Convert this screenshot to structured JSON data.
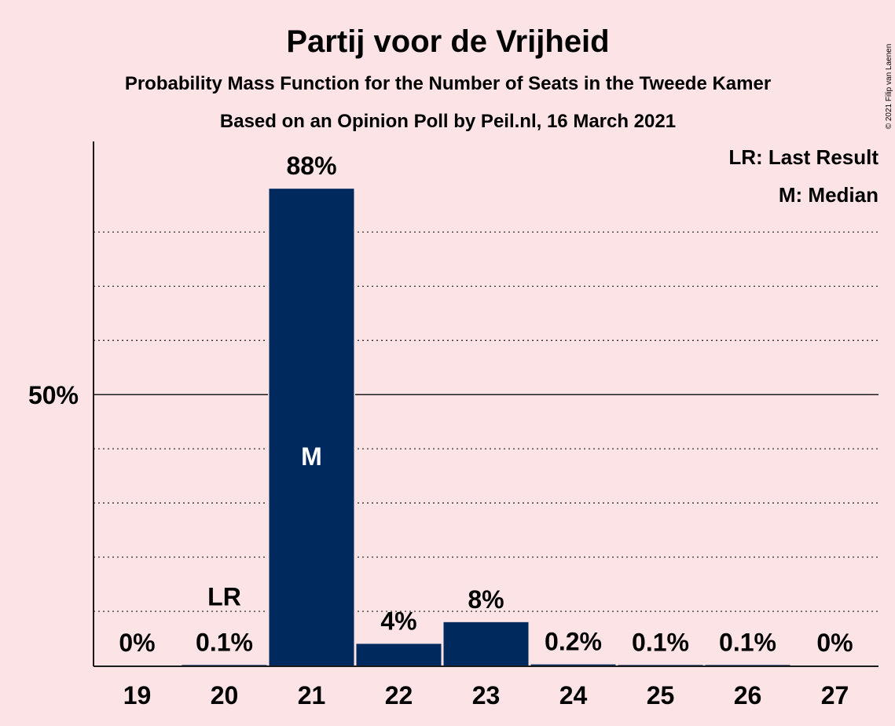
{
  "chart_data": {
    "type": "bar",
    "title": "Partij voor de Vrijheid",
    "subtitle": "Probability Mass Function for the Number of Seats in the Tweede Kamer",
    "subtitle2": "Based on an Opinion Poll by Peil.nl, 16 March 2021",
    "copyright": "© 2021 Filip van Laenen",
    "categories": [
      "19",
      "20",
      "21",
      "22",
      "23",
      "24",
      "25",
      "26",
      "27"
    ],
    "values": [
      0,
      0.1,
      88,
      4,
      8,
      0.2,
      0.1,
      0.1,
      0
    ],
    "value_labels": [
      "0%",
      "0.1%",
      "88%",
      "4%",
      "8%",
      "0.2%",
      "0.1%",
      "0.1%",
      "0%"
    ],
    "ylim": [
      0,
      96
    ],
    "ytick_labels": [
      {
        "value": 50,
        "label": "50%"
      }
    ],
    "gridlines": [
      10,
      20,
      30,
      40,
      60,
      70,
      80
    ],
    "last_result_category": "20",
    "median_category": "21",
    "lr_marker": "LR",
    "median_marker": "M",
    "legend": [
      "LR: Last Result",
      "M: Median"
    ],
    "legend_position": "top-right",
    "colors": {
      "bar": "#002a5e",
      "background": "#fce4e6",
      "text": "#1a1a1a"
    }
  }
}
